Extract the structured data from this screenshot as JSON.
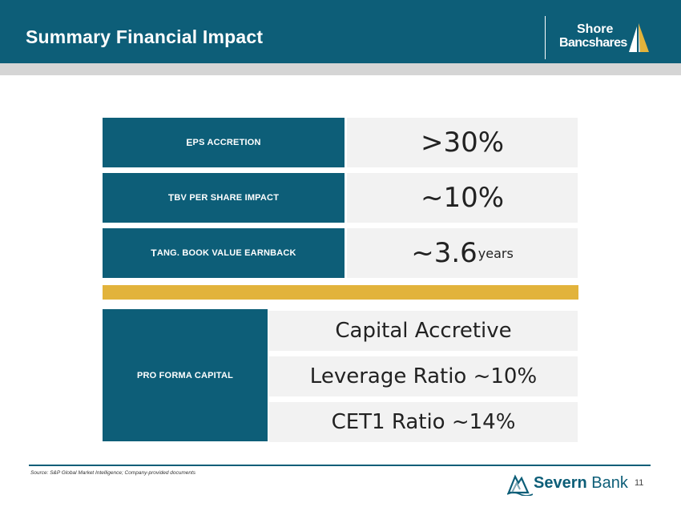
{
  "header": {
    "title": "Summary Financial Impact",
    "logo_line1": "Shore",
    "logo_line2": "Bancshares"
  },
  "metrics": [
    {
      "label_first": "E",
      "label_rest": "PS Accretion",
      "value": ">30%",
      "unit": ""
    },
    {
      "label_first": "T",
      "label_rest": "BV Per Share Impact",
      "value": "~10%",
      "unit": ""
    },
    {
      "label_first": "T",
      "label_rest": "ang. Book Value Earnback",
      "value": "~3.6",
      "unit": "years"
    }
  ],
  "capital": {
    "label_first": "P",
    "label_rest": "ro Forma Capital",
    "items": [
      "Capital Accretive",
      "Leverage Ratio ~10%",
      "CET1 Ratio ~14%"
    ]
  },
  "footer": {
    "source": "Source: S&P Global Market Intelligence;  Company-provided documents",
    "brand_bold": "Severn",
    "brand_rest": " Bank",
    "page_number": "11"
  },
  "colors": {
    "primary": "#0d5e78",
    "accent": "#e2b33b",
    "cell_bg": "#f2f2f2"
  }
}
